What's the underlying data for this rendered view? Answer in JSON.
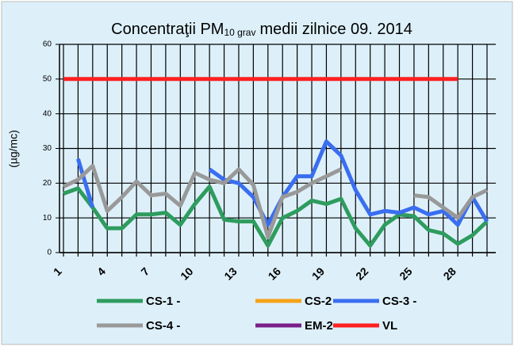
{
  "chart_data": {
    "type": "line",
    "title": "Concentraţii PM",
    "title_subscript": "10 grav",
    "title_suffix": "medii zilnice 09. 2014",
    "y_label": "(µg/mc)",
    "categories": [
      "1",
      null,
      null,
      "4",
      null,
      null,
      "7",
      null,
      null,
      "10",
      null,
      null,
      "13",
      null,
      null,
      "16",
      null,
      null,
      "19",
      null,
      null,
      "22",
      null,
      null,
      "25",
      null,
      null,
      "28",
      null,
      null
    ],
    "ylim": [
      0,
      60
    ],
    "yticks": [
      0,
      10,
      20,
      30,
      40,
      50,
      60
    ],
    "grid": true,
    "series": [
      {
        "name": "CS-1 -",
        "color": "#2e9c5e",
        "values": [
          17,
          18.5,
          13,
          7,
          7,
          11,
          11,
          11.5,
          8,
          14,
          19,
          9.5,
          9,
          9,
          2,
          10,
          12,
          15,
          14,
          15.5,
          7,
          2,
          8,
          11,
          10.5,
          6.5,
          5.5,
          2.5,
          5,
          9
        ]
      },
      {
        "name": "CS-2 -",
        "color": "#f5a31a",
        "values": [
          null,
          null,
          null,
          null,
          null,
          null,
          null,
          null,
          null,
          null,
          null,
          null,
          null,
          null,
          null,
          null,
          null,
          null,
          null,
          null,
          null,
          null,
          null,
          null,
          null,
          null,
          null,
          null,
          null,
          null
        ]
      },
      {
        "name": "CS-3 -",
        "color": "#3a6ef0",
        "values": [
          null,
          27,
          13,
          null,
          null,
          null,
          null,
          null,
          null,
          null,
          24,
          21,
          20,
          16,
          8,
          16,
          22,
          22,
          32,
          28,
          18,
          11,
          12,
          11.5,
          13,
          11,
          12,
          8,
          16,
          9
        ]
      },
      {
        "name": "CS-4 -",
        "color": "#999999",
        "values": [
          19,
          21,
          25,
          12,
          16,
          20.5,
          16.5,
          17,
          13.5,
          23,
          21,
          20,
          24,
          19.5,
          4.5,
          16,
          17.5,
          20,
          22,
          24,
          null,
          null,
          null,
          null,
          16.5,
          16,
          13,
          10,
          16,
          18
        ]
      },
      {
        "name": "EM-2 -",
        "color": "#7a1f8a",
        "values": [
          null,
          null,
          null,
          null,
          null,
          null,
          null,
          null,
          null,
          null,
          null,
          null,
          null,
          null,
          null,
          null,
          null,
          null,
          null,
          null,
          null,
          null,
          null,
          null,
          null,
          null,
          null,
          null,
          null,
          null
        ]
      },
      {
        "name": "VL",
        "color": "#ff2020",
        "values": [
          50,
          50,
          50,
          50,
          50,
          50,
          50,
          50,
          50,
          50,
          50,
          50,
          50,
          50,
          50,
          50,
          50,
          50,
          50,
          50,
          50,
          50,
          50,
          50,
          50,
          50,
          50,
          50,
          null,
          null
        ]
      }
    ]
  }
}
